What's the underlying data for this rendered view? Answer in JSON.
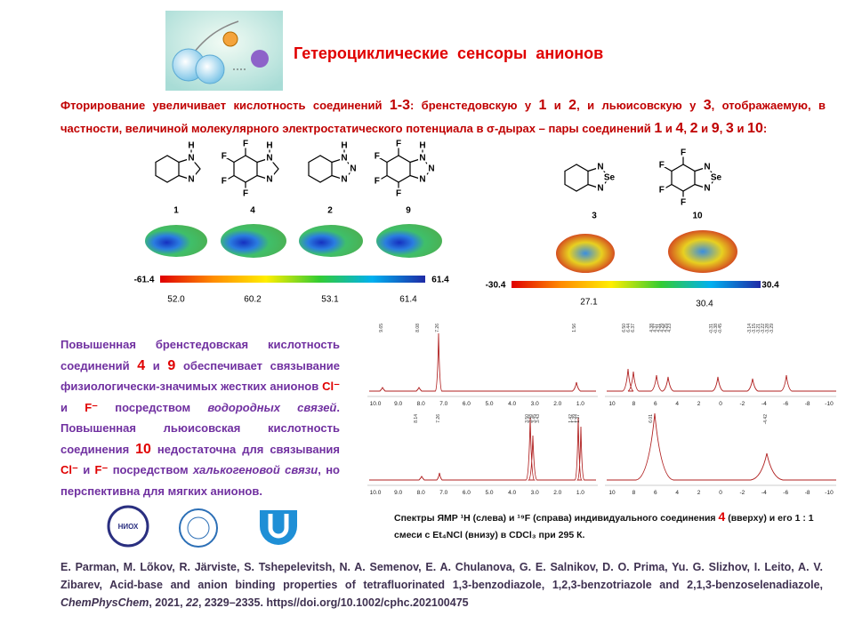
{
  "header": {
    "title": "Гетероциклические  сенсоры  анионов"
  },
  "intro": [
    {
      "text": "Фторирование увеличивает кислотность соединений "
    },
    {
      "text": "1-3",
      "big": true
    },
    {
      "text": ": бренстедовскую у "
    },
    {
      "text": "1",
      "big": true
    },
    {
      "text": " и "
    },
    {
      "text": "2",
      "big": true
    },
    {
      "text": ", и льюисовскую у "
    },
    {
      "text": "3",
      "big": true
    },
    {
      "text": ", отображаемую, в частности, величиной молекулярного электростатического потенциала в σ-дырах  –  пары соединений "
    },
    {
      "text": "1",
      "big": true
    },
    {
      "text": " и "
    },
    {
      "text": "4",
      "big": true
    },
    {
      "text": ", "
    },
    {
      "text": "2",
      "big": true
    },
    {
      "text": " и "
    },
    {
      "text": "9",
      "big": true
    },
    {
      "text": ", "
    },
    {
      "text": "3",
      "big": true
    },
    {
      "text": " и "
    },
    {
      "text": "10",
      "big": true
    },
    {
      "text": ":"
    }
  ],
  "molecules": [
    {
      "label": "1",
      "atoms": [
        "H",
        "N",
        "N"
      ]
    },
    {
      "label": "4",
      "atoms": [
        "F",
        "F",
        "F",
        "F",
        "H",
        "N",
        "N"
      ]
    },
    {
      "label": "2",
      "atoms": [
        "H",
        "N",
        "N",
        "N"
      ]
    },
    {
      "label": "9",
      "atoms": [
        "F",
        "F",
        "F",
        "F",
        "H",
        "N",
        "N",
        "N"
      ]
    },
    {
      "label": "3",
      "atoms": [
        "N",
        "Se",
        "N"
      ]
    },
    {
      "label": "10",
      "atoms": [
        "F",
        "F",
        "F",
        "F",
        "N",
        "Se",
        "N"
      ]
    }
  ],
  "scale1": {
    "min": "-61.4",
    "max": "61.4",
    "values": [
      "52.0",
      "60.2",
      "53.1",
      "61.4"
    ]
  },
  "scale2": {
    "min": "-30.4",
    "max": "30.4",
    "values": [
      "27.1",
      "30.4"
    ]
  },
  "paragraph": [
    {
      "text": "Повышенная бренстедовская кислотность соединений "
    },
    {
      "text": "4",
      "color": "#e00000",
      "big": true
    },
    {
      "text": " и "
    },
    {
      "text": "9",
      "color": "#e00000",
      "big": true
    },
    {
      "text": " обеспечивает связывание физиологически-значимых жестких анионов "
    },
    {
      "text": "Cl⁻",
      "color": "#e00000"
    },
    {
      "text": " и "
    },
    {
      "text": "F⁻",
      "color": "#e00000"
    },
    {
      "text": " посредством "
    },
    {
      "text": "водородных связей",
      "italic": true
    },
    {
      "text": ". Повышенная льюисовская кислотность соединения "
    },
    {
      "text": "10",
      "color": "#e00000",
      "big": true
    },
    {
      "text": " недостаточна для связывания "
    },
    {
      "text": "Cl⁻",
      "color": "#e00000"
    },
    {
      "text": " и "
    },
    {
      "text": "F⁻",
      "color": "#e00000"
    },
    {
      "text": " посредством "
    },
    {
      "text": "халькогеновой связи",
      "italic": true
    },
    {
      "text": ", но перспективна для мягких анионов."
    }
  ],
  "nmr": {
    "h_ticks": [
      "10.0",
      "9.0",
      "8.0",
      "7.0",
      "6.0",
      "5.0",
      "4.0",
      "3.0",
      "2.0",
      "1.0"
    ],
    "f_ticks": [
      "10",
      "8",
      "6",
      "4",
      "2",
      "0",
      "-2",
      "-4",
      "-6",
      "-8",
      "-10"
    ],
    "panels": [
      {
        "peaks": [
          "9.65",
          "8.08",
          "7.26",
          "1.56"
        ]
      },
      {
        "peaks": [
          "6.50",
          "6.44",
          "6.37",
          "4.38",
          "4.37",
          "4.31",
          "4.29",
          "4.25",
          "4.23",
          "-0.31",
          "-0.38",
          "-0.45",
          "-3.14",
          "-3.15",
          "-3.21",
          "-3.22",
          "-3.28",
          "-3.29"
        ]
      },
      {
        "peaks": [
          "8.14",
          "7.26",
          "3.50",
          "3.48",
          "3.45",
          "3.43",
          "1.42",
          "1.39",
          "1.37"
        ]
      },
      {
        "peaks": [
          "6.01",
          "-4.42"
        ]
      }
    ]
  },
  "logos": [
    "НИОХ"
  ],
  "caption": [
    {
      "text": "Спектры ЯМР ¹H (слева) и ¹⁹F (справа)  индивидуального  соединения "
    },
    {
      "text": "4",
      "color": "#e00000",
      "big": true
    },
    {
      "text": " (вверху) и его 1 : 1 смеси  с  Et₄NCl (внизу)  в CDCl₃ при 295 К."
    }
  ],
  "citation": [
    {
      "text": "E. Parman, M. Lõkov, R. Järviste, S. Tshepelevitsh, N. A. Semenov, E. A. Chulanova, G. E. Salnikov, D. O. Prima, Yu. G. Slizhov, I. Leito, A. V. Zibarev, Acid-base and anion binding properties of tetrafluorinated 1,3-benzodiazole, 1,2,3-benzotriazole and 2,1,3-benzoselenadiazole, "
    },
    {
      "text": "ChemPhysChem",
      "italic": true
    },
    {
      "text": ", 2021, "
    },
    {
      "text": "22",
      "italic": true
    },
    {
      "text": ", 2329–2335. https//doi.org/10.1002/cphc.202100475"
    }
  ]
}
